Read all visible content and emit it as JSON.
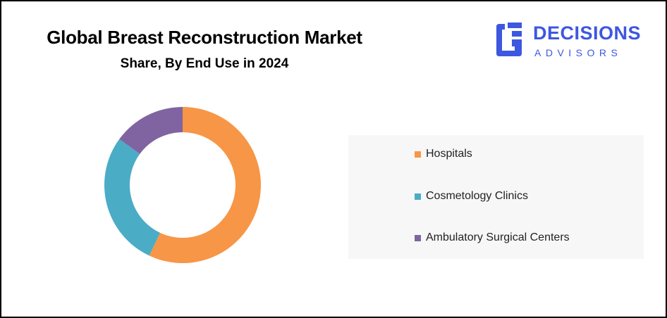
{
  "header": {
    "title": "Global Breast Reconstruction Market",
    "subtitle": "Share, By End Use in 2024"
  },
  "logo": {
    "line1": "DECISIONS",
    "line2": "ADVISORS",
    "color": "#3d57e0",
    "icon": "decisions-advisors-logo-icon"
  },
  "chart_data": {
    "type": "pie",
    "variant": "donut",
    "title": "Global Breast Reconstruction Market",
    "subtitle": "Share, By End Use in 2024",
    "legend_position": "right",
    "categories": [
      "Hospitals",
      "Cosmetology Clinics",
      "Ambulatory Surgical Centers"
    ],
    "values": [
      57,
      28,
      15
    ],
    "colors": [
      "#f79646",
      "#4bacc6",
      "#8064a2"
    ]
  }
}
